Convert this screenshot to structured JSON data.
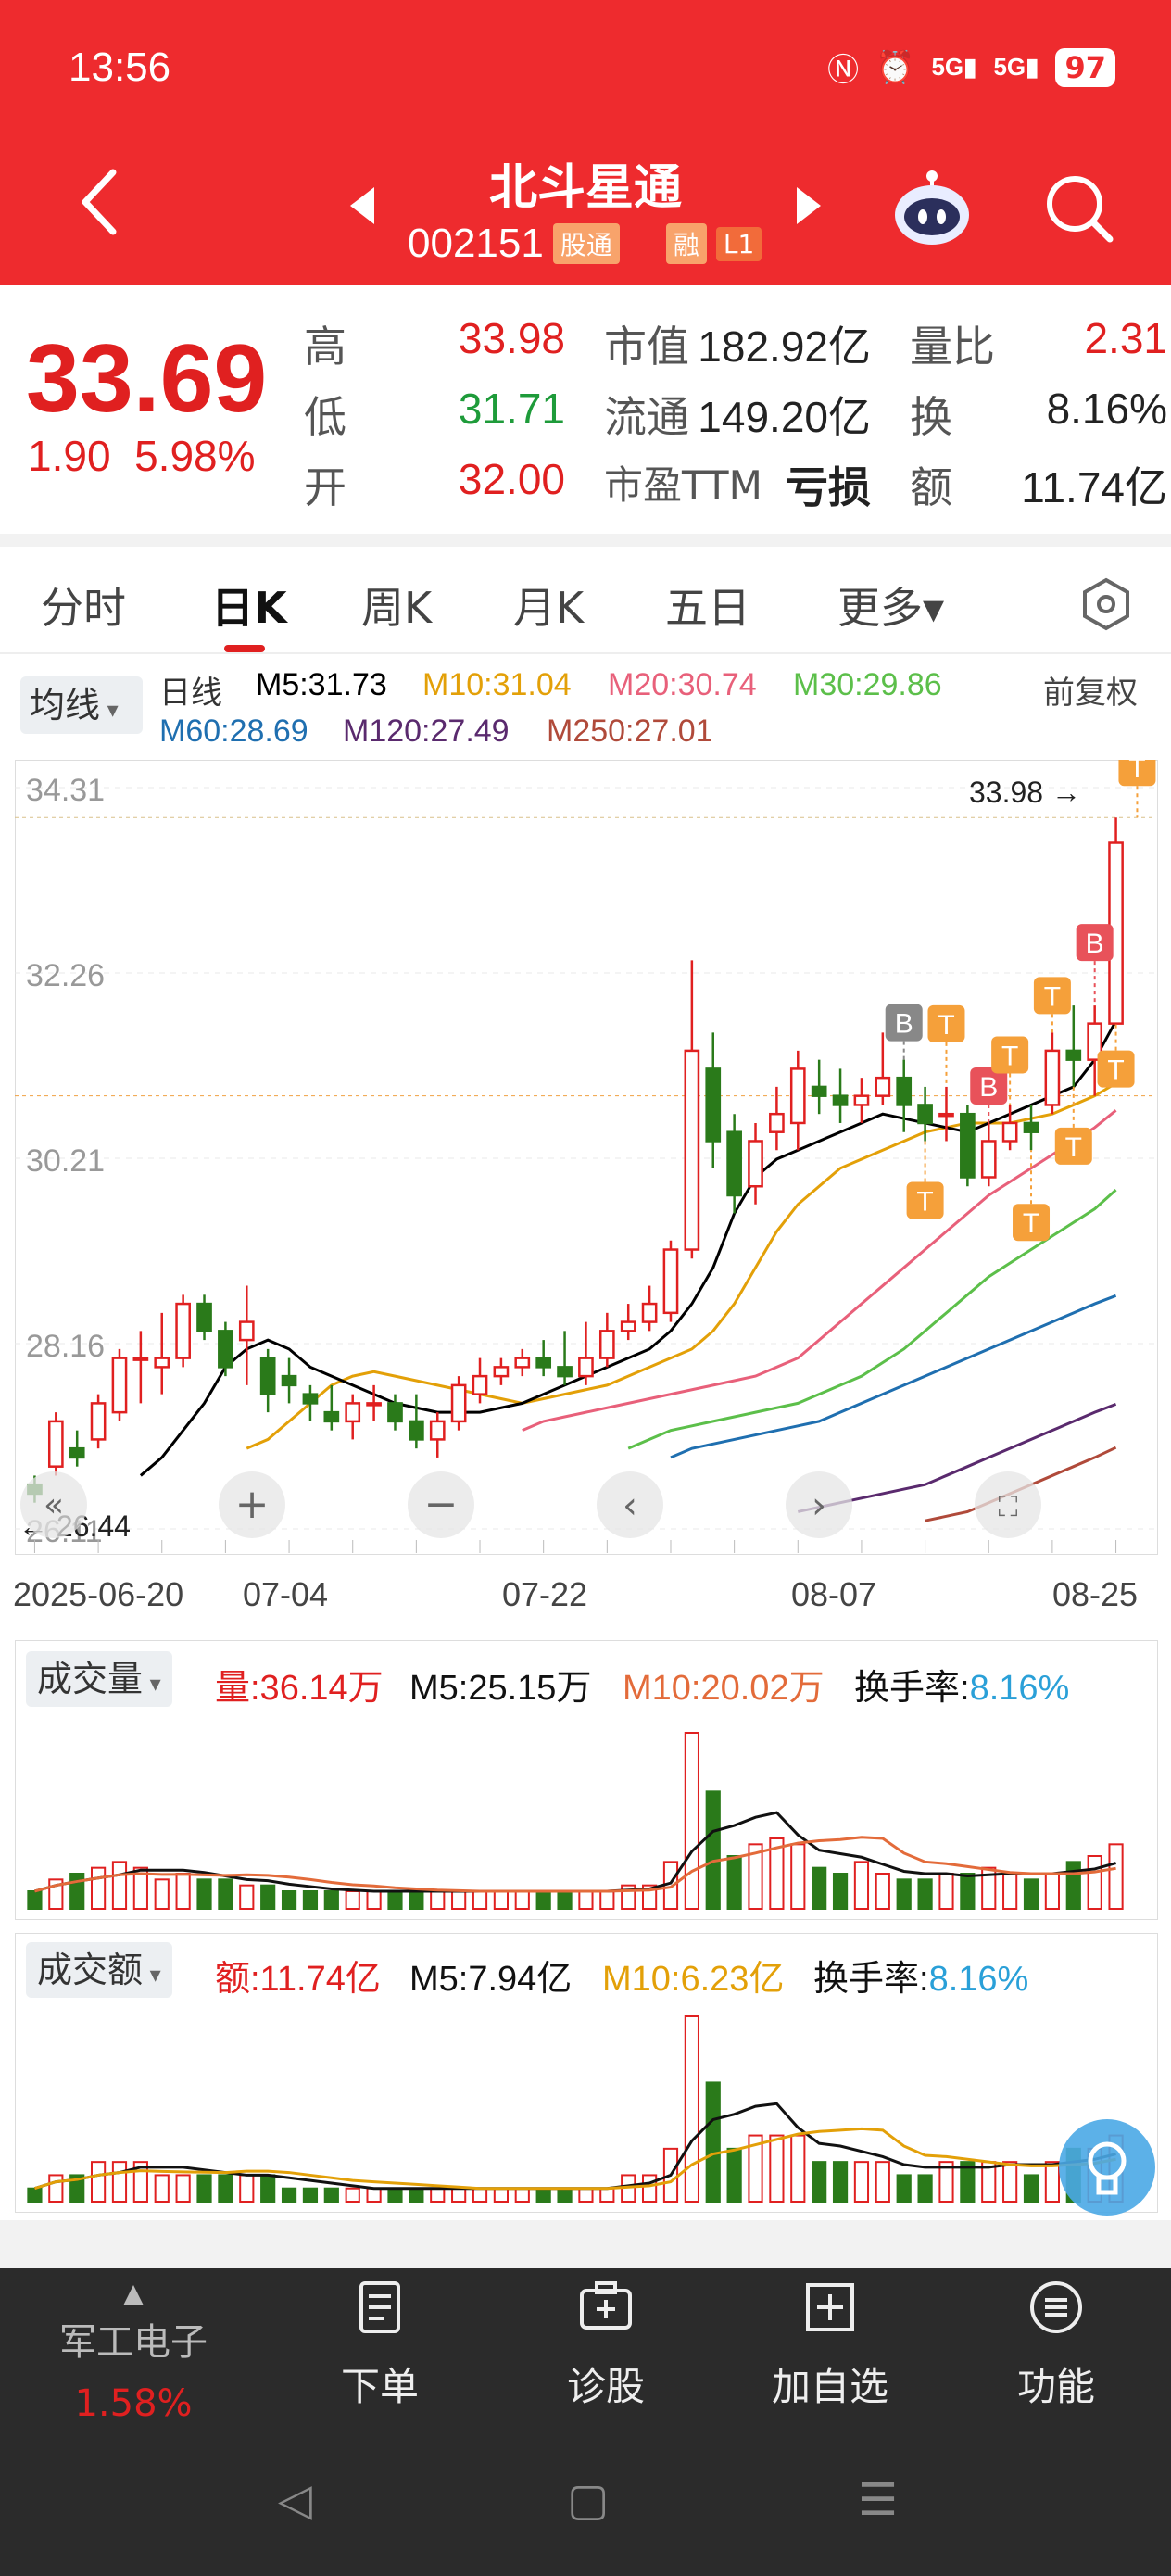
{
  "status": {
    "time": "13:56",
    "battery": "97",
    "signal1": "5G",
    "signal2": "5G"
  },
  "header": {
    "title": "北斗星通",
    "code": "002151",
    "tag_a": "股通",
    "tag_b": "融",
    "tag_c": "L1"
  },
  "quote": {
    "price": "33.69",
    "change": "1.90",
    "change_pct": "5.98%",
    "high_label": "高",
    "high": "33.98",
    "low_label": "低",
    "low": "31.71",
    "open_label": "开",
    "open": "32.00",
    "mktcap_label": "市值",
    "mktcap": "182.92亿",
    "float_label": "流通",
    "float": "149.20亿",
    "pe_label": "市盈TTM",
    "pe": "亏损",
    "volratio_label": "量比",
    "volratio": "2.31",
    "turnover_label": "换",
    "turnover": "8.16%",
    "amount_label": "额",
    "amount": "11.74亿"
  },
  "tabs": [
    "分时",
    "日K",
    "周K",
    "月K",
    "五日",
    "更多▾"
  ],
  "ma_legend": {
    "button": "均线",
    "period": "日线",
    "m5": "M5:31.73",
    "m10": "M10:31.04",
    "m20": "M20:30.74",
    "m30": "M30:29.86",
    "m60": "M60:28.69",
    "m120": "M120:27.49",
    "m250": "M250:27.01",
    "adjust": "前复权"
  },
  "colors": {
    "up": "#e02020",
    "down": "#2a7a1a",
    "m5": "#000000",
    "m10": "#e3a008",
    "m20": "#e8607a",
    "m30": "#5cbf4a",
    "m60": "#1f6fb0",
    "m120": "#5a2a6e",
    "m250": "#b04a3a",
    "header": "#ee2b2e"
  },
  "chart_data": {
    "type": "candlestick",
    "y_ticks": [
      "34.31",
      "32.26",
      "30.21",
      "28.16",
      "26.11"
    ],
    "x_ticks": [
      "2025-06-20",
      "07-04",
      "07-22",
      "08-07",
      "08-25"
    ],
    "high_marker": "33.98",
    "low_marker": "26.44",
    "ylim": [
      26.11,
      34.31
    ],
    "candles": [
      {
        "o": 26.6,
        "c": 26.5,
        "h": 26.7,
        "l": 26.4
      },
      {
        "o": 26.8,
        "c": 27.3,
        "h": 27.4,
        "l": 26.7
      },
      {
        "o": 27.0,
        "c": 26.9,
        "h": 27.2,
        "l": 26.8
      },
      {
        "o": 27.1,
        "c": 27.5,
        "h": 27.6,
        "l": 27.0
      },
      {
        "o": 27.4,
        "c": 28.0,
        "h": 28.1,
        "l": 27.3
      },
      {
        "o": 28.0,
        "c": 28.0,
        "h": 28.3,
        "l": 27.5
      },
      {
        "o": 27.9,
        "c": 28.0,
        "h": 28.5,
        "l": 27.6
      },
      {
        "o": 28.0,
        "c": 28.6,
        "h": 28.7,
        "l": 27.9
      },
      {
        "o": 28.6,
        "c": 28.3,
        "h": 28.7,
        "l": 28.2
      },
      {
        "o": 28.3,
        "c": 27.9,
        "h": 28.4,
        "l": 27.8
      },
      {
        "o": 28.2,
        "c": 28.4,
        "h": 28.8,
        "l": 27.7
      },
      {
        "o": 28.0,
        "c": 27.6,
        "h": 28.1,
        "l": 27.4
      },
      {
        "o": 27.8,
        "c": 27.7,
        "h": 28.0,
        "l": 27.5
      },
      {
        "o": 27.6,
        "c": 27.5,
        "h": 27.7,
        "l": 27.3
      },
      {
        "o": 27.4,
        "c": 27.3,
        "h": 27.7,
        "l": 27.2
      },
      {
        "o": 27.3,
        "c": 27.5,
        "h": 27.6,
        "l": 27.1
      },
      {
        "o": 27.5,
        "c": 27.5,
        "h": 27.7,
        "l": 27.3
      },
      {
        "o": 27.5,
        "c": 27.3,
        "h": 27.6,
        "l": 27.2
      },
      {
        "o": 27.3,
        "c": 27.1,
        "h": 27.6,
        "l": 27.0
      },
      {
        "o": 27.1,
        "c": 27.3,
        "h": 27.4,
        "l": 26.9
      },
      {
        "o": 27.3,
        "c": 27.7,
        "h": 27.8,
        "l": 27.2
      },
      {
        "o": 27.6,
        "c": 27.8,
        "h": 28.0,
        "l": 27.5
      },
      {
        "o": 27.8,
        "c": 27.9,
        "h": 28.0,
        "l": 27.7
      },
      {
        "o": 27.9,
        "c": 28.0,
        "h": 28.1,
        "l": 27.8
      },
      {
        "o": 28.0,
        "c": 27.9,
        "h": 28.2,
        "l": 27.8
      },
      {
        "o": 27.9,
        "c": 27.8,
        "h": 28.3,
        "l": 27.7
      },
      {
        "o": 27.8,
        "c": 28.0,
        "h": 28.4,
        "l": 27.7
      },
      {
        "o": 28.0,
        "c": 28.3,
        "h": 28.5,
        "l": 27.9
      },
      {
        "o": 28.3,
        "c": 28.4,
        "h": 28.6,
        "l": 28.2
      },
      {
        "o": 28.4,
        "c": 28.6,
        "h": 28.8,
        "l": 28.3
      },
      {
        "o": 28.5,
        "c": 29.2,
        "h": 29.3,
        "l": 28.4
      },
      {
        "o": 29.2,
        "c": 31.4,
        "h": 32.4,
        "l": 29.1
      },
      {
        "o": 31.2,
        "c": 30.4,
        "h": 31.6,
        "l": 30.1
      },
      {
        "o": 30.5,
        "c": 29.8,
        "h": 30.7,
        "l": 29.6
      },
      {
        "o": 29.9,
        "c": 30.4,
        "h": 30.6,
        "l": 29.7
      },
      {
        "o": 30.5,
        "c": 30.7,
        "h": 31.0,
        "l": 30.3
      },
      {
        "o": 30.6,
        "c": 31.2,
        "h": 31.4,
        "l": 30.3
      },
      {
        "o": 31.0,
        "c": 30.9,
        "h": 31.3,
        "l": 30.7
      },
      {
        "o": 30.9,
        "c": 30.8,
        "h": 31.2,
        "l": 30.6
      },
      {
        "o": 30.8,
        "c": 30.9,
        "h": 31.1,
        "l": 30.6
      },
      {
        "o": 30.9,
        "c": 31.1,
        "h": 31.6,
        "l": 30.8
      },
      {
        "o": 31.1,
        "c": 30.8,
        "h": 31.3,
        "l": 30.5
      },
      {
        "o": 30.8,
        "c": 30.6,
        "h": 31.0,
        "l": 30.4
      },
      {
        "o": 30.7,
        "c": 30.7,
        "h": 31.0,
        "l": 30.4
      },
      {
        "o": 30.7,
        "c": 30.0,
        "h": 30.8,
        "l": 29.9
      },
      {
        "o": 30.0,
        "c": 30.4,
        "h": 30.6,
        "l": 29.9
      },
      {
        "o": 30.4,
        "c": 30.6,
        "h": 30.8,
        "l": 30.3
      },
      {
        "o": 30.6,
        "c": 30.5,
        "h": 30.8,
        "l": 30.3
      },
      {
        "o": 30.8,
        "c": 31.4,
        "h": 31.6,
        "l": 30.7
      },
      {
        "o": 31.4,
        "c": 31.3,
        "h": 31.9,
        "l": 31.0
      },
      {
        "o": 31.3,
        "c": 31.7,
        "h": 31.9,
        "l": 30.9
      },
      {
        "o": 31.7,
        "c": 33.7,
        "h": 33.98,
        "l": 31.71
      }
    ],
    "ma_lines": {
      "m5": [
        26.7,
        26.9,
        27.2,
        27.5,
        27.9,
        28.1,
        28.2,
        28.1,
        27.9,
        27.8,
        27.7,
        27.6,
        27.5,
        27.45,
        27.4,
        27.4,
        27.4,
        27.45,
        27.5,
        27.6,
        27.7,
        27.8,
        27.9,
        28.0,
        28.1,
        28.3,
        28.6,
        29.0,
        29.6,
        30.0,
        30.2,
        30.3,
        30.4,
        30.5,
        30.6,
        30.7,
        30.65,
        30.6,
        30.55,
        30.5,
        30.6,
        30.7,
        30.8,
        30.9,
        31.0,
        31.3,
        31.73
      ],
      "m10": [
        27.0,
        27.1,
        27.3,
        27.5,
        27.7,
        27.8,
        27.85,
        27.8,
        27.75,
        27.7,
        27.65,
        27.6,
        27.55,
        27.5,
        27.55,
        27.6,
        27.65,
        27.7,
        27.8,
        27.9,
        28.0,
        28.1,
        28.3,
        28.6,
        29.0,
        29.4,
        29.7,
        29.9,
        30.1,
        30.2,
        30.3,
        30.4,
        30.5,
        30.55,
        30.6,
        30.6,
        30.6,
        30.65,
        30.7,
        30.8,
        30.9,
        31.04
      ],
      "m20": [
        27.2,
        27.3,
        27.35,
        27.4,
        27.45,
        27.5,
        27.55,
        27.6,
        27.65,
        27.7,
        27.75,
        27.8,
        27.9,
        28.0,
        28.2,
        28.4,
        28.6,
        28.8,
        29.0,
        29.2,
        29.4,
        29.6,
        29.8,
        29.95,
        30.1,
        30.25,
        30.4,
        30.55,
        30.74
      ],
      "m30": [
        27.0,
        27.1,
        27.2,
        27.25,
        27.3,
        27.35,
        27.4,
        27.45,
        27.5,
        27.6,
        27.7,
        27.8,
        27.95,
        28.1,
        28.3,
        28.5,
        28.7,
        28.9,
        29.05,
        29.2,
        29.35,
        29.5,
        29.65,
        29.86
      ],
      "m60": [
        26.9,
        27.0,
        27.05,
        27.1,
        27.15,
        27.2,
        27.25,
        27.3,
        27.4,
        27.5,
        27.6,
        27.7,
        27.8,
        27.9,
        28.0,
        28.1,
        28.2,
        28.3,
        28.4,
        28.5,
        28.6,
        28.69
      ],
      "m120": [
        26.3,
        26.35,
        26.4,
        26.45,
        26.5,
        26.55,
        26.6,
        26.7,
        26.8,
        26.9,
        27.0,
        27.1,
        27.2,
        27.3,
        27.4,
        27.49
      ],
      "m250": [
        26.2,
        26.25,
        26.3,
        26.4,
        26.5,
        26.6,
        26.7,
        26.8,
        26.9,
        27.01
      ]
    },
    "signals": [
      {
        "label": "B",
        "color": "#888888",
        "idx": 41
      },
      {
        "label": "T",
        "color": "#f5a03a",
        "idx": 42
      },
      {
        "label": "T",
        "color": "#f5a03a",
        "idx": 43
      },
      {
        "label": "B",
        "color": "#e8525a",
        "idx": 45
      },
      {
        "label": "T",
        "color": "#f5a03a",
        "idx": 46
      },
      {
        "label": "T",
        "color": "#f5a03a",
        "idx": 47
      },
      {
        "label": "T",
        "color": "#f5a03a",
        "idx": 48
      },
      {
        "label": "T",
        "color": "#f5a03a",
        "idx": 49
      },
      {
        "label": "B",
        "color": "#e8525a",
        "idx": 50
      },
      {
        "label": "T",
        "color": "#f5a03a",
        "idx": 51
      },
      {
        "label": "T",
        "color": "#f5a03a",
        "idx": 52
      }
    ],
    "volume": [
      3,
      5,
      6,
      7,
      8,
      7,
      5,
      6,
      5,
      5,
      4,
      4,
      3,
      3,
      3,
      3,
      3,
      3,
      3,
      3,
      3,
      3,
      3,
      3,
      3,
      3,
      3,
      3,
      4,
      4,
      8,
      30,
      20,
      9,
      11,
      12,
      11,
      7,
      6,
      8,
      6,
      5,
      5,
      6,
      6,
      7,
      6,
      5,
      6,
      8,
      9,
      11
    ],
    "amount": [
      1,
      2,
      2,
      3,
      3,
      3,
      2,
      2,
      2,
      2,
      2,
      2,
      1,
      1,
      1,
      1,
      1,
      1,
      1,
      1,
      1,
      1,
      1,
      1,
      1,
      1,
      1,
      1,
      2,
      2,
      4,
      14,
      9,
      4,
      5,
      5,
      5,
      3,
      3,
      3,
      3,
      2,
      2,
      3,
      3,
      3,
      3,
      2,
      3,
      4,
      4,
      5
    ]
  },
  "volume_panel": {
    "button": "成交量",
    "vol": "量:36.14万",
    "m5": "M5:25.15万",
    "m10": "M10:20.02万",
    "turnover_label": "换手率:",
    "turnover": "8.16%"
  },
  "amount_panel": {
    "button": "成交额",
    "amt": "额:11.74亿",
    "m5": "M5:7.94亿",
    "m10": "M10:6.23亿",
    "turnover_label": "换手率:",
    "turnover": "8.16%"
  },
  "bottom_bar": {
    "sector_name": "军工电子",
    "sector_change": "1.58%",
    "order": "下单",
    "diagnose": "诊股",
    "add_watch": "加自选",
    "functions": "功能"
  }
}
